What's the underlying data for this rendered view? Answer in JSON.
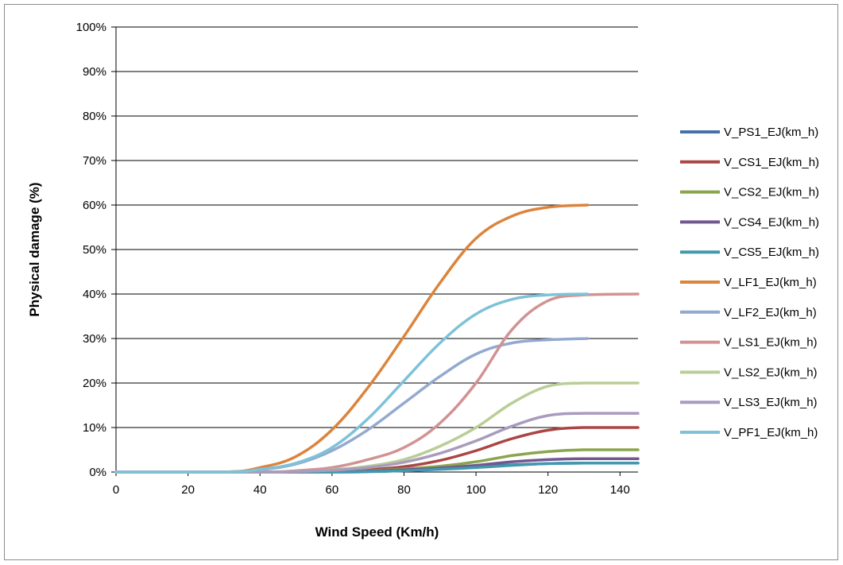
{
  "chart_data": {
    "type": "line",
    "title": "",
    "xlabel": "Wind Speed (Km/h)",
    "ylabel": "Physical damage (%)",
    "xlim": [
      0,
      145
    ],
    "ylim": [
      0,
      100
    ],
    "x_ticks": [
      "0",
      "20",
      "40",
      "60",
      "80",
      "100",
      "120",
      "140"
    ],
    "x_tick_values": [
      0,
      20,
      40,
      60,
      80,
      100,
      120,
      140
    ],
    "y_ticks": [
      "0%",
      "10%",
      "20%",
      "30%",
      "40%",
      "50%",
      "60%",
      "70%",
      "80%",
      "90%",
      "100%"
    ],
    "y_tick_values": [
      0,
      10,
      20,
      30,
      40,
      50,
      60,
      70,
      80,
      90,
      100
    ],
    "grid": "horizontal",
    "legend_position": "right",
    "series": [
      {
        "name": "V_PS1_EJ(km_h)",
        "color": "#4472A8",
        "x": [
          0,
          60,
          70,
          80,
          90,
          100,
          110,
          120,
          130,
          145
        ],
        "y": [
          0,
          0,
          0.1,
          0.3,
          0.7,
          1.2,
          1.6,
          1.9,
          2.0,
          2.0
        ]
      },
      {
        "name": "V_CS1_EJ(km_h)",
        "color": "#AA4643",
        "x": [
          0,
          40,
          60,
          70,
          80,
          90,
          100,
          110,
          120,
          130,
          145
        ],
        "y": [
          0,
          0,
          0.2,
          0.5,
          1.2,
          2.6,
          4.8,
          7.5,
          9.4,
          10.0,
          10.0
        ]
      },
      {
        "name": "V_CS2_EJ(km_h)",
        "color": "#89A54E",
        "x": [
          0,
          50,
          60,
          70,
          80,
          90,
          100,
          110,
          120,
          130,
          145
        ],
        "y": [
          0,
          0,
          0.1,
          0.3,
          0.7,
          1.3,
          2.3,
          3.7,
          4.6,
          5.0,
          5.0
        ]
      },
      {
        "name": "V_CS4_EJ(km_h)",
        "color": "#71588F",
        "x": [
          0,
          50,
          60,
          70,
          80,
          90,
          100,
          110,
          120,
          130,
          145
        ],
        "y": [
          0,
          0,
          0.1,
          0.2,
          0.5,
          0.9,
          1.5,
          2.3,
          2.8,
          3.0,
          3.0
        ]
      },
      {
        "name": "V_CS5_EJ(km_h)",
        "color": "#4198AF",
        "x": [
          0,
          60,
          70,
          80,
          90,
          100,
          110,
          120,
          130,
          145
        ],
        "y": [
          0,
          0,
          0.1,
          0.3,
          0.6,
          1.0,
          1.5,
          1.9,
          2.0,
          2.0
        ]
      },
      {
        "name": "V_LF1_EJ(km_h)",
        "color": "#DB843D",
        "x": [
          0,
          30,
          40,
          50,
          60,
          70,
          80,
          90,
          100,
          110,
          120,
          131
        ],
        "y": [
          0,
          0,
          1.0,
          3.5,
          9.5,
          19.0,
          30.5,
          42.5,
          52.5,
          57.5,
          59.5,
          60.0
        ]
      },
      {
        "name": "V_LF2_EJ(km_h)",
        "color": "#93A9CF",
        "x": [
          0,
          30,
          40,
          50,
          60,
          70,
          80,
          90,
          100,
          110,
          120,
          131
        ],
        "y": [
          0,
          0,
          0.5,
          1.8,
          4.8,
          9.5,
          15.5,
          21.5,
          26.5,
          29.0,
          29.7,
          30.0
        ]
      },
      {
        "name": "V_LS1_EJ(km_h)",
        "color": "#D19392",
        "x": [
          0,
          40,
          50,
          60,
          70,
          80,
          90,
          100,
          110,
          120,
          130,
          145
        ],
        "y": [
          0,
          0,
          0.3,
          1.0,
          2.8,
          5.5,
          11.0,
          20.0,
          32.0,
          38.5,
          39.8,
          40.0
        ]
      },
      {
        "name": "V_LS2_EJ(km_h)",
        "color": "#B9CD96",
        "x": [
          0,
          40,
          50,
          60,
          70,
          80,
          90,
          100,
          110,
          120,
          130,
          145
        ],
        "y": [
          0,
          0,
          0.1,
          0.5,
          1.3,
          2.8,
          5.8,
          10.0,
          15.5,
          19.3,
          20.0,
          20.0
        ]
      },
      {
        "name": "V_LS3_EJ(km_h)",
        "color": "#A99BBD",
        "x": [
          0,
          40,
          50,
          60,
          70,
          80,
          90,
          100,
          110,
          120,
          130,
          145
        ],
        "y": [
          0,
          0,
          0.1,
          0.4,
          1.0,
          2.2,
          4.2,
          7.0,
          10.3,
          12.7,
          13.2,
          13.2
        ]
      },
      {
        "name": "V_PF1_EJ(km_h)",
        "color": "#7EC2D8",
        "x": [
          0,
          30,
          40,
          50,
          60,
          70,
          80,
          90,
          100,
          110,
          120,
          131
        ],
        "y": [
          0,
          0,
          0.6,
          2.0,
          5.5,
          12.0,
          20.5,
          29.0,
          35.5,
          38.8,
          39.8,
          40.0
        ]
      }
    ]
  }
}
